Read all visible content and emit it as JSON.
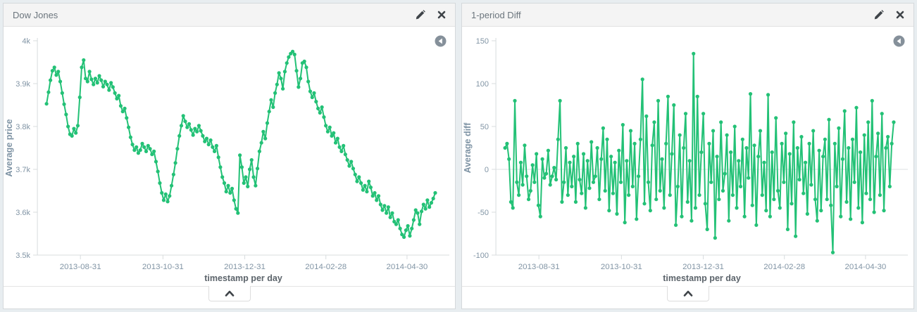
{
  "page_background": "#e8edf0",
  "series_color": "#23c176",
  "panels": [
    {
      "title": "Dow Jones",
      "header_icons": [
        "edit-pencil-icon",
        "remove-x-icon"
      ],
      "undo_zoom_icon": "circled-left-arrow",
      "collapse_icon": "chevron-up",
      "chart_data": {
        "type": "line",
        "title": "Dow Jones",
        "xlabel": "timestamp per day",
        "ylabel": "Average price",
        "x_tick_labels": [
          "2013-08-31",
          "2013-10-31",
          "2013-12-31",
          "2014-02-28",
          "2014-04-30"
        ],
        "y_ticks": [
          4000,
          3900,
          3800,
          3700,
          3600,
          3500
        ],
        "y_tick_labels": [
          "4k",
          "3.9k",
          "3.8k",
          "3.7k",
          "3.6k",
          "3.5k"
        ],
        "ylim": [
          3500,
          4000
        ],
        "zero_line": false,
        "legend": "none",
        "values": [
          3853,
          3880,
          3908,
          3930,
          3938,
          3920,
          3928,
          3905,
          3878,
          3852,
          3828,
          3800,
          3782,
          3778,
          3795,
          3785,
          3802,
          3868,
          3938,
          3955,
          3912,
          3905,
          3928,
          3910,
          3898,
          3912,
          3902,
          3918,
          3908,
          3893,
          3905,
          3898,
          3885,
          3902,
          3892,
          3878,
          3865,
          3872,
          3848,
          3835,
          3842,
          3820,
          3798,
          3775,
          3758,
          3745,
          3752,
          3738,
          3745,
          3760,
          3752,
          3742,
          3755,
          3748,
          3735,
          3742,
          3718,
          3695,
          3668,
          3645,
          3628,
          3642,
          3625,
          3638,
          3662,
          3688,
          3715,
          3748,
          3778,
          3802,
          3825,
          3812,
          3798,
          3806,
          3792,
          3780,
          3795,
          3788,
          3802,
          3790,
          3778,
          3765,
          3772,
          3758,
          3768,
          3752,
          3742,
          3755,
          3728,
          3705,
          3682,
          3668,
          3648,
          3662,
          3645,
          3655,
          3628,
          3608,
          3598,
          3733,
          3705,
          3668,
          3682,
          3660,
          3700,
          3722,
          3682,
          3662,
          3702,
          3742,
          3762,
          3788,
          3772,
          3808,
          3835,
          3862,
          3845,
          3878,
          3898,
          3925,
          3912,
          3888,
          3928,
          3948,
          3962,
          3970,
          3975,
          3968,
          3930,
          3892,
          3912,
          3948,
          3952,
          3938,
          3905,
          3882,
          3868,
          3878,
          3858,
          3842,
          3832,
          3845,
          3822,
          3802,
          3788,
          3798,
          3778,
          3785,
          3762,
          3772,
          3752,
          3742,
          3755,
          3735,
          3722,
          3708,
          3718,
          3702,
          3688,
          3672,
          3682,
          3668,
          3652,
          3662,
          3648,
          3672,
          3658,
          3638,
          3645,
          3628,
          3638,
          3618,
          3605,
          3615,
          3598,
          3612,
          3588,
          3598,
          3578,
          3572,
          3582,
          3562,
          3548,
          3542,
          3558,
          3568,
          3545,
          3562,
          3582,
          3605,
          3598,
          3572,
          3602,
          3618,
          3608,
          3628,
          3612,
          3622,
          3632,
          3645
        ]
      }
    },
    {
      "title": "1-period Diff",
      "header_icons": [
        "edit-pencil-icon",
        "remove-x-icon"
      ],
      "undo_zoom_icon": "circled-left-arrow",
      "collapse_icon": "chevron-up",
      "chart_data": {
        "type": "line",
        "title": "1-period Diff",
        "xlabel": "timestamp per day",
        "ylabel": "Average diff",
        "x_tick_labels": [
          "2013-08-31",
          "2013-10-31",
          "2013-12-31",
          "2014-02-28",
          "2014-04-30"
        ],
        "y_ticks": [
          150,
          100,
          50,
          0,
          -50,
          -100
        ],
        "y_tick_labels": [
          "150",
          "100",
          "50",
          "0",
          "-50",
          "-100"
        ],
        "ylim": [
          -100,
          150
        ],
        "zero_line": true,
        "legend": "none",
        "values": [
          25,
          30,
          12,
          -38,
          -45,
          80,
          -15,
          -30,
          8,
          -18,
          28,
          -8,
          -35,
          -25,
          5,
          -15,
          18,
          -42,
          -55,
          12,
          -10,
          -5,
          22,
          -18,
          -8,
          2,
          -12,
          35,
          80,
          -38,
          -15,
          25,
          -30,
          8,
          -20,
          15,
          -38,
          30,
          -12,
          -28,
          18,
          -45,
          10,
          -22,
          32,
          -15,
          -8,
          25,
          -35,
          12,
          48,
          -25,
          35,
          -48,
          15,
          -28,
          8,
          -52,
          22,
          -15,
          52,
          -62,
          10,
          -30,
          45,
          -20,
          30,
          -58,
          -8,
          35,
          105,
          -40,
          62,
          -15,
          -48,
          28,
          55,
          -35,
          80,
          -25,
          12,
          -45,
          30,
          85,
          -30,
          18,
          75,
          -65,
          -20,
          40,
          -55,
          25,
          65,
          -38,
          10,
          -60,
          135,
          -45,
          85,
          -30,
          20,
          65,
          -40,
          -70,
          30,
          -15,
          45,
          -80,
          15,
          -35,
          55,
          -25,
          -5,
          40,
          -60,
          20,
          -30,
          50,
          -45,
          10,
          -20,
          35,
          -55,
          25,
          -10,
          88,
          -42,
          28,
          -65,
          15,
          45,
          -30,
          8,
          -48,
          87,
          -55,
          20,
          -35,
          60,
          -25,
          -45,
          30,
          -15,
          42,
          -70,
          18,
          -40,
          55,
          -78,
          25,
          -12,
          38,
          -28,
          8,
          -52,
          30,
          -18,
          45,
          -35,
          -60,
          22,
          -48,
          15,
          35,
          -35,
          58,
          -42,
          -97,
          30,
          -20,
          48,
          -55,
          12,
          68,
          -38,
          25,
          -58,
          35,
          -15,
          72,
          -45,
          20,
          -62,
          40,
          -28,
          55,
          -35,
          80,
          -50,
          15,
          42,
          -30,
          65,
          -48,
          25,
          38,
          -20,
          30,
          55
        ]
      }
    }
  ]
}
